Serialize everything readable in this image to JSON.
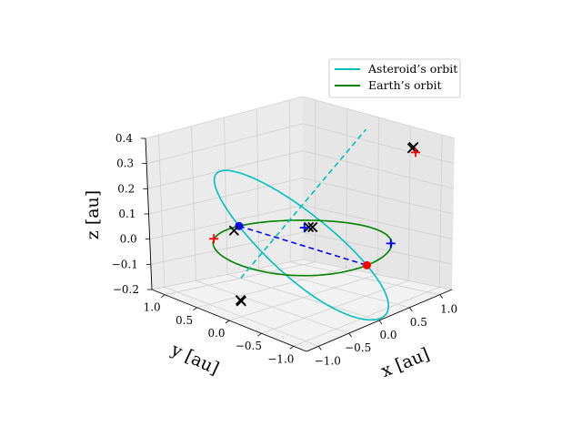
{
  "chart_data": {
    "type": "line3d",
    "xlabel": "x [au]",
    "ylabel": "y [au]",
    "zlabel": "z [au]",
    "xlim": [
      -1.2,
      1.2
    ],
    "ylim": [
      -1.2,
      1.2
    ],
    "zlim": [
      -0.2,
      0.4
    ],
    "xticks": [
      -1.0,
      -0.5,
      0.0,
      0.5,
      1.0
    ],
    "yticks": [
      -1.0,
      -0.5,
      0.0,
      0.5,
      1.0
    ],
    "zticks": [
      -0.2,
      -0.1,
      0.0,
      0.1,
      0.2,
      0.3,
      0.4
    ],
    "xtick_labels": [
      "−1.0",
      "−0.5",
      "0.0",
      "0.5",
      "1.0"
    ],
    "ytick_labels": [
      "−1.0",
      "−0.5",
      "0.0",
      "0.5",
      "1.0"
    ],
    "ztick_labels": [
      "−0.2",
      "−0.1",
      "0.0",
      "0.1",
      "0.2",
      "0.3",
      "0.4"
    ],
    "grid": true,
    "legend_position": "top-right",
    "series": [
      {
        "name": "Asteroid’s orbit",
        "color": "#00bfbf",
        "orbit": {
          "a": 1.0,
          "e": 0.0,
          "inclination_deg": 20.5,
          "ascending_node_deg": 90
        }
      },
      {
        "name": "Earth’s orbit",
        "color": "#008000",
        "orbit": {
          "a": 1.0,
          "e": 0.0,
          "inclination_deg": 0,
          "ascending_node_deg": 0
        }
      }
    ],
    "line_of_nodes": {
      "color": "#0000ff",
      "points": [
        [
          0.0,
          1.0,
          0.0
        ],
        [
          0.0,
          -1.0,
          0.0
        ]
      ],
      "marker_start": "circle",
      "marker_end": "circle",
      "marker_colors": [
        "#0000ff",
        "#ff0000"
      ]
    },
    "asteroid_apsis_line": {
      "color": "#00bfbf",
      "points": [
        [
          -1.0,
          0.0,
          -0.05
        ],
        [
          1.0,
          0.0,
          0.37
        ]
      ]
    },
    "markers": [
      {
        "kind": "x",
        "color": "#000000",
        "point": [
          0.98,
          -0.75,
          0.35
        ]
      },
      {
        "kind": "x",
        "color": "#000000",
        "point": [
          1.02,
          -0.73,
          0.35
        ]
      },
      {
        "kind": "x",
        "color": "#000000",
        "point": [
          0.55,
          0.45,
          0.0
        ]
      },
      {
        "kind": "x",
        "color": "#000000",
        "point": [
          0.58,
          0.42,
          0.0
        ]
      },
      {
        "kind": "x",
        "color": "#000000",
        "point": [
          -0.98,
          0.03,
          -0.14
        ]
      },
      {
        "kind": "x",
        "color": "#000000",
        "point": [
          -1.0,
          0.0,
          -0.14
        ]
      },
      {
        "kind": "x",
        "color": "#000000",
        "point": [
          -0.1,
          0.98,
          -0.01
        ]
      },
      {
        "kind": "+",
        "color": "#ff0000",
        "point": [
          0.9,
          -0.88,
          0.35
        ]
      },
      {
        "kind": "+",
        "color": "#ff0000",
        "point": [
          -0.58,
          0.82,
          0.0
        ]
      },
      {
        "kind": "+",
        "color": "#0000ff",
        "point": [
          0.5,
          0.47,
          0.0
        ]
      },
      {
        "kind": "+",
        "color": "#0000ff",
        "point": [
          0.7,
          -0.7,
          0.0
        ]
      }
    ]
  }
}
